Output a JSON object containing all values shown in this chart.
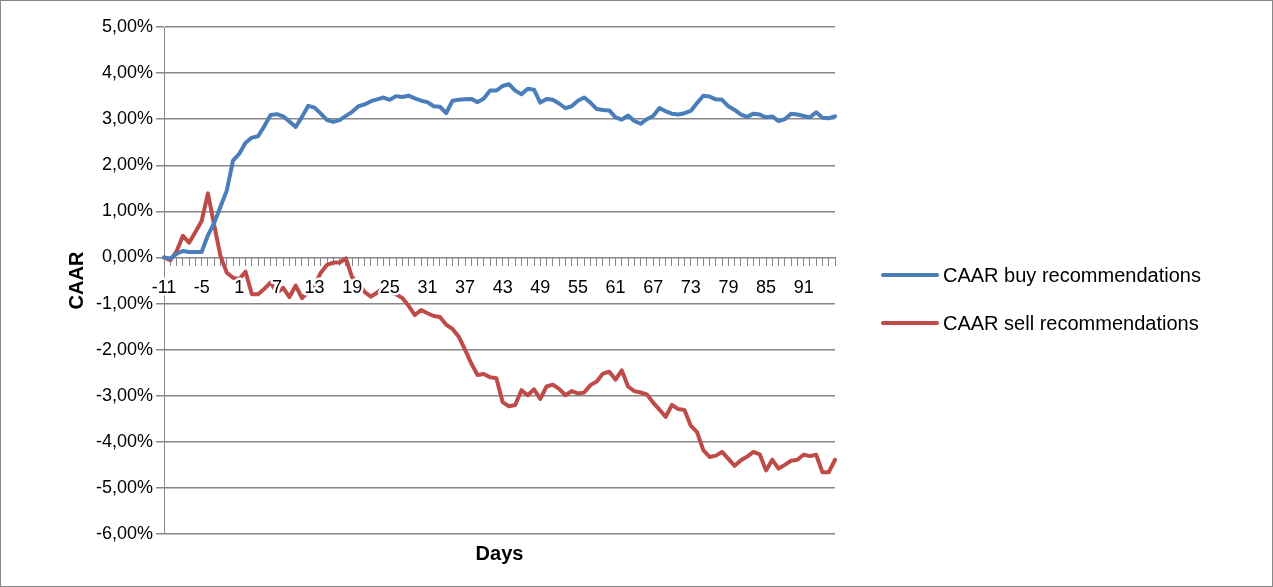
{
  "chart_data": {
    "type": "line",
    "xlabel": "Days",
    "ylabel": "CAAR",
    "categories": [
      "-11",
      null,
      null,
      null,
      null,
      null,
      "-5",
      null,
      null,
      null,
      null,
      null,
      "1",
      null,
      null,
      null,
      null,
      null,
      "7",
      null,
      null,
      null,
      null,
      null,
      "13",
      null,
      null,
      null,
      null,
      null,
      "19",
      null,
      null,
      null,
      null,
      null,
      "25",
      null,
      null,
      null,
      null,
      null,
      "31",
      null,
      null,
      null,
      null,
      null,
      "37",
      null,
      null,
      null,
      null,
      null,
      "43",
      null,
      null,
      null,
      null,
      null,
      "49",
      null,
      null,
      null,
      null,
      null,
      "55",
      null,
      null,
      null,
      null,
      null,
      "61",
      null,
      null,
      null,
      null,
      null,
      "67",
      null,
      null,
      null,
      null,
      null,
      "73",
      null,
      null,
      null,
      null,
      null,
      "79",
      null,
      null,
      null,
      null,
      null,
      "85",
      null,
      null,
      null,
      null,
      null,
      "91",
      null,
      null,
      null,
      null,
      null
    ],
    "series": [
      {
        "name": "CAAR buy recommendations",
        "color": "#4a7ebb",
        "values": [
          0.0,
          -0.02,
          0.08,
          0.14,
          0.12,
          0.12,
          0.12,
          0.48,
          0.75,
          1.1,
          1.45,
          2.1,
          2.25,
          2.49,
          2.6,
          2.63,
          2.85,
          3.09,
          3.11,
          3.06,
          2.95,
          2.83,
          3.05,
          3.29,
          3.25,
          3.12,
          2.98,
          2.94,
          2.98,
          3.07,
          3.16,
          3.28,
          3.32,
          3.39,
          3.43,
          3.47,
          3.42,
          3.5,
          3.48,
          3.51,
          3.45,
          3.4,
          3.37,
          3.28,
          3.27,
          3.13,
          3.4,
          3.42,
          3.43,
          3.44,
          3.37,
          3.45,
          3.62,
          3.62,
          3.72,
          3.76,
          3.62,
          3.54,
          3.66,
          3.64,
          3.36,
          3.44,
          3.42,
          3.34,
          3.24,
          3.28,
          3.4,
          3.47,
          3.36,
          3.22,
          3.2,
          3.19,
          3.04,
          2.99,
          3.08,
          2.96,
          2.9,
          3.0,
          3.07,
          3.24,
          3.17,
          3.12,
          3.1,
          3.13,
          3.18,
          3.35,
          3.51,
          3.49,
          3.43,
          3.42,
          3.28,
          3.2,
          3.1,
          3.05,
          3.12,
          3.1,
          3.04,
          3.06,
          2.96,
          3.0,
          3.12,
          3.1,
          3.07,
          3.04,
          3.15,
          3.03,
          3.02,
          3.06
        ]
      },
      {
        "name": "CAAR sell recommendations",
        "color": "#be4b48",
        "values": [
          0.0,
          -0.06,
          0.13,
          0.47,
          0.32,
          0.55,
          0.79,
          1.39,
          0.7,
          0.03,
          -0.33,
          -0.44,
          -0.47,
          -0.31,
          -0.8,
          -0.8,
          -0.68,
          -0.54,
          -0.77,
          -0.66,
          -0.86,
          -0.61,
          -0.88,
          -0.75,
          -0.6,
          -0.33,
          -0.16,
          -0.11,
          -0.11,
          -0.02,
          -0.43,
          -0.54,
          -0.75,
          -0.85,
          -0.76,
          -0.66,
          -0.74,
          -0.8,
          -0.88,
          -1.05,
          -1.25,
          -1.14,
          -1.21,
          -1.27,
          -1.29,
          -1.46,
          -1.55,
          -1.72,
          -2.0,
          -2.3,
          -2.55,
          -2.53,
          -2.6,
          -2.62,
          -3.14,
          -3.23,
          -3.2,
          -2.88,
          -2.99,
          -2.86,
          -3.07,
          -2.8,
          -2.76,
          -2.85,
          -2.99,
          -2.9,
          -2.95,
          -2.93,
          -2.77,
          -2.69,
          -2.52,
          -2.48,
          -2.65,
          -2.45,
          -2.8,
          -2.9,
          -2.93,
          -2.97,
          -3.15,
          -3.3,
          -3.46,
          -3.2,
          -3.29,
          -3.31,
          -3.65,
          -3.79,
          -4.18,
          -4.33,
          -4.3,
          -4.22,
          -4.37,
          -4.52,
          -4.4,
          -4.32,
          -4.22,
          -4.27,
          -4.62,
          -4.39,
          -4.58,
          -4.5,
          -4.41,
          -4.39,
          -4.28,
          -4.31,
          -4.28,
          -4.66,
          -4.66,
          -4.39
        ]
      }
    ],
    "ylim": [
      -6,
      5
    ],
    "yticks": [
      {
        "value": -6,
        "label": "-6,00%"
      },
      {
        "value": -5,
        "label": "-5,00%"
      },
      {
        "value": -4,
        "label": "-4,00%"
      },
      {
        "value": -3,
        "label": "-3,00%"
      },
      {
        "value": -2,
        "label": "-2,00%"
      },
      {
        "value": -1,
        "label": "-1,00%"
      },
      {
        "value": 0,
        "label": "0,00%"
      },
      {
        "value": 1,
        "label": "1,00%"
      },
      {
        "value": 2,
        "label": "2,00%"
      },
      {
        "value": 3,
        "label": "3,00%"
      },
      {
        "value": 4,
        "label": "4,00%"
      },
      {
        "value": 5,
        "label": "5,00%"
      }
    ],
    "grid": "y",
    "legend": "right",
    "marker": "none",
    "line_style": "solid"
  }
}
